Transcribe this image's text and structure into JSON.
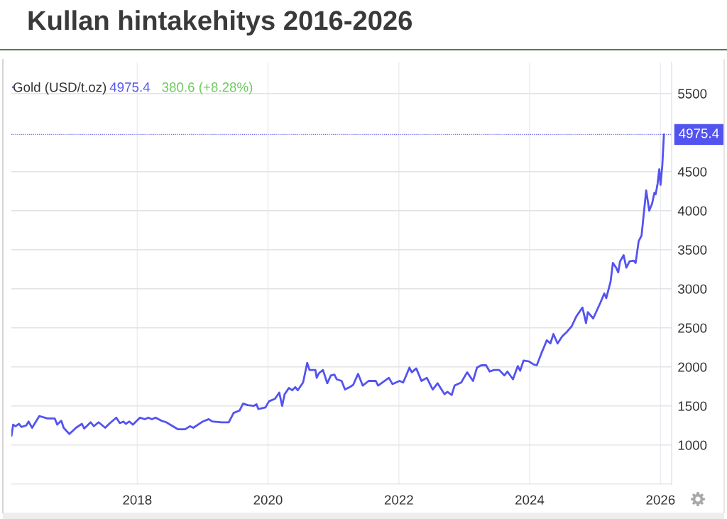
{
  "chart_data": {
    "type": "line",
    "title": "Kullan hintakehitys 2016-2026",
    "x": [
      "2016-01-30",
      "2016-02-08",
      "2016-02-21",
      "2016-03-12",
      "2016-03-25",
      "2016-04-21",
      "2016-05-04",
      "2016-05-24",
      "2016-07-03",
      "2016-08-18",
      "2016-09-27",
      "2016-10-11",
      "2016-11-03",
      "2016-11-16",
      "2016-12-18",
      "2017-01-24",
      "2017-02-26",
      "2017-03-11",
      "2017-04-16",
      "2017-05-04",
      "2017-05-30",
      "2017-07-06",
      "2017-07-28",
      "2017-09-06",
      "2017-09-26",
      "2017-10-16",
      "2017-10-29",
      "2017-11-18",
      "2017-12-08",
      "2018-01-16",
      "2018-02-12",
      "2018-03-04",
      "2018-03-24",
      "2018-04-13",
      "2018-05-16",
      "2018-06-12",
      "2018-08-17",
      "2018-09-25",
      "2018-10-22",
      "2018-11-10",
      "2019-01-02",
      "2019-02-04",
      "2019-02-24",
      "2019-04-17",
      "2019-05-27",
      "2019-06-23",
      "2019-07-26",
      "2019-08-15",
      "2019-09-10",
      "2019-10-13",
      "2019-10-29",
      "2019-11-08",
      "2019-12-18",
      "2020-01-07",
      "2020-02-09",
      "2020-03-04",
      "2020-03-20",
      "2020-04-03",
      "2020-04-27",
      "2020-05-15",
      "2020-06-02",
      "2020-06-15",
      "2020-07-15",
      "2020-08-07",
      "2020-08-20",
      "2020-09-22",
      "2020-09-29",
      "2020-10-12",
      "2020-11-03",
      "2020-11-27",
      "2020-12-17",
      "2021-01-06",
      "2021-01-19",
      "2021-02-15",
      "2021-03-06",
      "2021-04-01",
      "2021-04-21",
      "2021-05-18",
      "2021-06-13",
      "2021-07-16",
      "2021-08-25",
      "2021-09-07",
      "2021-11-06",
      "2021-11-26",
      "2022-01-05",
      "2022-01-25",
      "2022-02-11",
      "2022-03-01",
      "2022-03-14",
      "2022-04-08",
      "2022-05-07",
      "2022-06-06",
      "2022-07-09",
      "2022-08-05",
      "2022-09-13",
      "2022-09-29",
      "2022-10-23",
      "2022-11-08",
      "2022-12-15",
      "2023-01-17",
      "2023-02-19",
      "2023-03-13",
      "2023-04-06",
      "2023-05-03",
      "2023-05-23",
      "2023-06-16",
      "2023-07-15",
      "2023-08-13",
      "2023-08-30",
      "2023-09-30",
      "2023-10-27",
      "2023-11-09",
      "2023-11-28",
      "2023-12-28",
      "2024-01-24",
      "2024-02-10",
      "2024-03-08",
      "2024-04-06",
      "2024-04-26",
      "2024-05-13",
      "2024-06-05",
      "2024-07-01",
      "2024-07-28",
      "2024-08-23",
      "2024-09-19",
      "2024-10-22",
      "2024-11-11",
      "2024-11-21",
      "2024-12-21",
      "2025-01-30",
      "2025-02-21",
      "2025-03-04",
      "2025-03-28",
      "2025-04-10",
      "2025-04-28",
      "2025-05-10",
      "2025-05-20",
      "2025-06-09",
      "2025-06-24",
      "2025-07-12",
      "2025-08-05",
      "2025-08-15",
      "2025-09-01",
      "2025-09-17",
      "2025-10-13",
      "2025-10-30",
      "2025-11-15",
      "2025-11-28",
      "2025-12-05",
      "2025-12-16",
      "2025-12-25",
      "2026-01-01",
      "2026-01-11",
      "2026-01-20"
    ],
    "series": [
      {
        "name": "Gold (USD/t.oz)",
        "color": "#5353f0",
        "values": [
          1120,
          1260,
          1240,
          1270,
          1230,
          1250,
          1300,
          1220,
          1370,
          1340,
          1340,
          1260,
          1310,
          1220,
          1140,
          1220,
          1270,
          1210,
          1290,
          1240,
          1290,
          1220,
          1270,
          1350,
          1280,
          1300,
          1270,
          1300,
          1260,
          1350,
          1330,
          1350,
          1330,
          1350,
          1310,
          1290,
          1200,
          1200,
          1240,
          1220,
          1300,
          1330,
          1300,
          1290,
          1290,
          1410,
          1440,
          1530,
          1510,
          1500,
          1520,
          1460,
          1480,
          1560,
          1590,
          1670,
          1500,
          1650,
          1730,
          1700,
          1740,
          1700,
          1800,
          2050,
          1960,
          1960,
          1860,
          1920,
          1960,
          1790,
          1890,
          1900,
          1840,
          1820,
          1710,
          1740,
          1770,
          1910,
          1760,
          1820,
          1820,
          1760,
          1860,
          1780,
          1820,
          1800,
          1890,
          1990,
          1930,
          1980,
          1820,
          1860,
          1710,
          1790,
          1650,
          1680,
          1640,
          1760,
          1800,
          1930,
          1820,
          1990,
          2020,
          2020,
          1940,
          1960,
          1960,
          1890,
          1940,
          1840,
          2010,
          1950,
          2080,
          2070,
          2030,
          2020,
          2180,
          2340,
          2300,
          2420,
          2300,
          2390,
          2450,
          2520,
          2650,
          2760,
          2560,
          2700,
          2620,
          2820,
          2940,
          2880,
          3090,
          3330,
          3270,
          3210,
          3350,
          3430,
          3270,
          3350,
          3360,
          3330,
          3610,
          3680,
          4260,
          4000,
          4090,
          4230,
          4210,
          4350,
          4530,
          4330,
          4580,
          4975.4
        ]
      }
    ],
    "xlim": [
      "2016-01-29",
      "2026-03-04"
    ],
    "xticks": [
      "2018",
      "2020",
      "2022",
      "2024",
      "2026"
    ],
    "ylim": [
      500,
      5900
    ],
    "yticks": [
      1000,
      1500,
      2000,
      2500,
      3000,
      3500,
      4000,
      4500,
      5500
    ],
    "ref_lines": [
      {
        "axis": "y",
        "value": 4975.4,
        "label": "4975.4",
        "color": "#5353f0",
        "line_style": "dotted"
      }
    ],
    "annotations": [
      "4975.4",
      "380.6 (+8.28%)"
    ],
    "grid": true,
    "legend": "top left"
  }
}
